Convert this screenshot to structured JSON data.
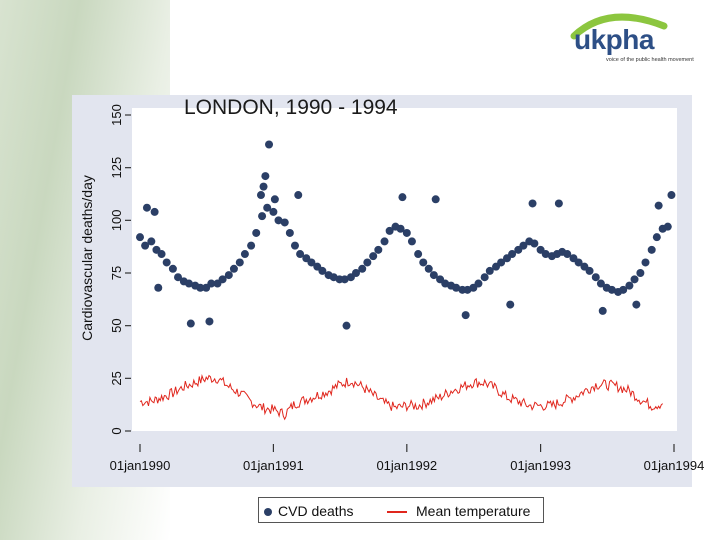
{
  "logo": {
    "text": "ukpha",
    "tagline": "voice of the public health movement"
  },
  "chart_data": {
    "type": "scatter",
    "title": "LONDON, 1990 - 1994",
    "ylabel": "Cardiovascular deaths/day",
    "xlabel": "",
    "ylim": [
      0,
      155
    ],
    "yticks": [
      0,
      25,
      50,
      75,
      100,
      125,
      150
    ],
    "ytick_labels": [
      "0",
      "25",
      "50",
      "75",
      "100",
      "125",
      "150"
    ],
    "x_range": [
      "1990-01-01",
      "1994-01-01"
    ],
    "xticks": [
      "1990-01-01",
      "1991-01-01",
      "1992-01-01",
      "1993-01-01",
      "1994-01-01"
    ],
    "xtick_labels": [
      "01jan1990",
      "01jan1991",
      "01jan1992",
      "01jan1993",
      "01jan1994"
    ],
    "grid": false,
    "legend_position": "bottom",
    "series": [
      {
        "name": "CVD deaths",
        "kind": "scatter",
        "color": "#2b3f66",
        "points": [
          [
            "1990-01-01",
            92
          ],
          [
            "1990-01-15",
            88
          ],
          [
            "1990-02-01",
            90
          ],
          [
            "1990-02-15",
            86
          ],
          [
            "1990-03-01",
            84
          ],
          [
            "1990-03-15",
            80
          ],
          [
            "1990-04-01",
            77
          ],
          [
            "1990-04-15",
            73
          ],
          [
            "1990-05-01",
            71
          ],
          [
            "1990-05-15",
            70
          ],
          [
            "1990-06-01",
            69
          ],
          [
            "1990-06-15",
            68
          ],
          [
            "1990-07-01",
            68
          ],
          [
            "1990-07-15",
            70
          ],
          [
            "1990-08-01",
            70
          ],
          [
            "1990-08-15",
            72
          ],
          [
            "1990-09-01",
            74
          ],
          [
            "1990-09-15",
            77
          ],
          [
            "1990-10-01",
            80
          ],
          [
            "1990-10-15",
            84
          ],
          [
            "1990-11-01",
            88
          ],
          [
            "1990-11-15",
            94
          ],
          [
            "1990-12-01",
            102
          ],
          [
            "1990-12-15",
            106
          ],
          [
            "1991-01-01",
            104
          ],
          [
            "1991-01-15",
            100
          ],
          [
            "1991-02-01",
            99
          ],
          [
            "1991-02-15",
            94
          ],
          [
            "1991-03-01",
            88
          ],
          [
            "1991-03-15",
            84
          ],
          [
            "1991-04-01",
            82
          ],
          [
            "1991-04-15",
            80
          ],
          [
            "1991-05-01",
            78
          ],
          [
            "1991-05-15",
            76
          ],
          [
            "1991-06-01",
            74
          ],
          [
            "1991-06-15",
            73
          ],
          [
            "1991-07-01",
            72
          ],
          [
            "1991-07-15",
            72
          ],
          [
            "1991-08-01",
            73
          ],
          [
            "1991-08-15",
            75
          ],
          [
            "1991-09-01",
            77
          ],
          [
            "1991-09-15",
            80
          ],
          [
            "1991-10-01",
            83
          ],
          [
            "1991-10-15",
            86
          ],
          [
            "1991-11-01",
            90
          ],
          [
            "1991-11-15",
            95
          ],
          [
            "1991-12-01",
            97
          ],
          [
            "1991-12-15",
            96
          ],
          [
            "1992-01-01",
            94
          ],
          [
            "1992-01-15",
            90
          ],
          [
            "1992-02-01",
            84
          ],
          [
            "1992-02-15",
            80
          ],
          [
            "1992-03-01",
            77
          ],
          [
            "1992-03-15",
            74
          ],
          [
            "1992-04-01",
            72
          ],
          [
            "1992-04-15",
            70
          ],
          [
            "1992-05-01",
            69
          ],
          [
            "1992-05-15",
            68
          ],
          [
            "1992-06-01",
            67
          ],
          [
            "1992-06-15",
            67
          ],
          [
            "1992-07-01",
            68
          ],
          [
            "1992-07-15",
            70
          ],
          [
            "1992-08-01",
            73
          ],
          [
            "1992-08-15",
            76
          ],
          [
            "1992-09-01",
            78
          ],
          [
            "1992-09-15",
            80
          ],
          [
            "1992-10-01",
            82
          ],
          [
            "1992-10-15",
            84
          ],
          [
            "1992-11-01",
            86
          ],
          [
            "1992-11-15",
            88
          ],
          [
            "1992-12-01",
            90
          ],
          [
            "1992-12-15",
            89
          ],
          [
            "1993-01-01",
            86
          ],
          [
            "1993-01-15",
            84
          ],
          [
            "1993-02-01",
            83
          ],
          [
            "1993-02-15",
            84
          ],
          [
            "1993-03-01",
            85
          ],
          [
            "1993-03-15",
            84
          ],
          [
            "1993-04-01",
            82
          ],
          [
            "1993-04-15",
            80
          ],
          [
            "1993-05-01",
            78
          ],
          [
            "1993-05-15",
            76
          ],
          [
            "1993-06-01",
            73
          ],
          [
            "1993-06-15",
            70
          ],
          [
            "1993-07-01",
            68
          ],
          [
            "1993-07-15",
            67
          ],
          [
            "1993-08-01",
            66
          ],
          [
            "1993-08-15",
            67
          ],
          [
            "1993-09-01",
            69
          ],
          [
            "1993-09-15",
            72
          ],
          [
            "1993-10-01",
            75
          ],
          [
            "1993-10-15",
            80
          ],
          [
            "1993-11-01",
            86
          ],
          [
            "1993-11-15",
            92
          ],
          [
            "1993-12-01",
            96
          ],
          [
            "1993-12-15",
            97
          ],
          [
            "1990-12-05",
            116
          ],
          [
            "1990-12-10",
            121
          ],
          [
            "1990-12-20",
            136
          ],
          [
            "1990-11-28",
            112
          ],
          [
            "1991-01-05",
            110
          ],
          [
            "1990-02-20",
            68
          ],
          [
            "1990-05-20",
            51
          ],
          [
            "1990-07-10",
            52
          ],
          [
            "1991-03-10",
            112
          ],
          [
            "1991-07-20",
            50
          ],
          [
            "1991-12-20",
            111
          ],
          [
            "1992-03-20",
            110
          ],
          [
            "1992-06-10",
            55
          ],
          [
            "1992-10-10",
            60
          ],
          [
            "1992-12-10",
            108
          ],
          [
            "1993-02-20",
            108
          ],
          [
            "1993-06-20",
            57
          ],
          [
            "1993-09-20",
            60
          ],
          [
            "1993-12-25",
            112
          ],
          [
            "1993-11-20",
            107
          ],
          [
            "1990-01-20",
            106
          ],
          [
            "1990-02-10",
            104
          ]
        ]
      },
      {
        "name": "Mean temperature",
        "kind": "line",
        "color": "#e0261d",
        "points": [
          [
            "1990-01-01",
            14
          ],
          [
            "1990-02-01",
            14
          ],
          [
            "1990-03-01",
            16
          ],
          [
            "1990-04-01",
            18
          ],
          [
            "1990-05-01",
            21
          ],
          [
            "1990-06-01",
            23
          ],
          [
            "1990-07-01",
            25
          ],
          [
            "1990-08-01",
            25
          ],
          [
            "1990-09-01",
            21
          ],
          [
            "1990-10-01",
            18
          ],
          [
            "1990-11-01",
            14
          ],
          [
            "1990-12-01",
            11
          ],
          [
            "1991-01-01",
            10
          ],
          [
            "1991-02-01",
            8
          ],
          [
            "1991-03-01",
            13
          ],
          [
            "1991-04-01",
            15
          ],
          [
            "1991-05-01",
            17
          ],
          [
            "1991-06-01",
            19
          ],
          [
            "1991-07-01",
            22
          ],
          [
            "1991-08-01",
            24
          ],
          [
            "1991-09-01",
            21
          ],
          [
            "1991-10-01",
            17
          ],
          [
            "1991-11-01",
            13
          ],
          [
            "1991-12-01",
            11
          ],
          [
            "1992-01-01",
            12
          ],
          [
            "1992-02-01",
            12
          ],
          [
            "1992-03-01",
            14
          ],
          [
            "1992-04-01",
            16
          ],
          [
            "1992-05-01",
            19
          ],
          [
            "1992-06-01",
            21
          ],
          [
            "1992-07-01",
            23
          ],
          [
            "1992-08-01",
            23
          ],
          [
            "1992-09-01",
            20
          ],
          [
            "1992-10-01",
            16
          ],
          [
            "1992-11-01",
            14
          ],
          [
            "1992-12-01",
            12
          ],
          [
            "1993-01-01",
            12
          ],
          [
            "1993-02-01",
            12
          ],
          [
            "1993-03-01",
            14
          ],
          [
            "1993-04-01",
            16
          ],
          [
            "1993-05-01",
            19
          ],
          [
            "1993-06-01",
            22
          ],
          [
            "1993-07-01",
            22
          ],
          [
            "1993-08-01",
            21
          ],
          [
            "1993-09-01",
            19
          ],
          [
            "1993-10-01",
            15
          ],
          [
            "1993-11-01",
            12
          ],
          [
            "1993-12-01",
            13
          ]
        ]
      }
    ]
  }
}
